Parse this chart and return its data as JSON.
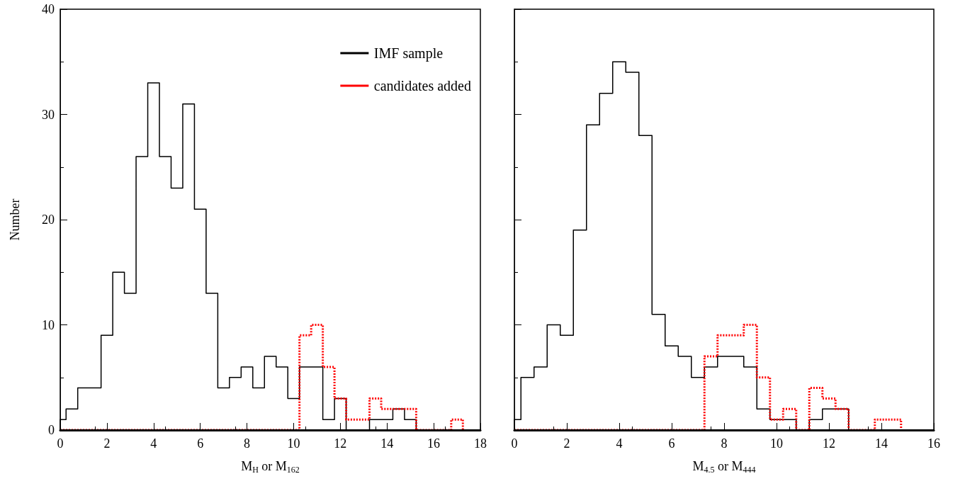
{
  "chart_data": [
    {
      "type": "histogram",
      "xlabel": "M$_{H}$ or M$_{162}$",
      "ylabel": "Number",
      "xlim": [
        0,
        18
      ],
      "xticks": [
        0,
        2,
        4,
        6,
        8,
        10,
        12,
        14,
        16,
        18
      ],
      "ylim": [
        0,
        40
      ],
      "yticks": [
        0,
        10,
        20,
        30,
        40
      ],
      "grid": false,
      "legend": "top right",
      "bins": [
        0,
        0.25,
        0.75,
        1.25,
        1.75,
        2.25,
        2.75,
        3.25,
        3.75,
        4.25,
        4.75,
        5.25,
        5.75,
        6.25,
        6.75,
        7.25,
        7.75,
        8.25,
        8.75,
        9.25,
        9.75,
        10.25,
        10.75,
        11.25,
        11.75,
        12.25,
        12.75,
        13.25,
        13.75,
        14.25,
        14.75,
        15.25,
        15.75,
        16.25,
        16.75,
        17.25
      ],
      "series": [
        {
          "name": "IMF sample",
          "color": "#000000",
          "line_style": "solid",
          "values": [
            1,
            2,
            4,
            4,
            9,
            15,
            13,
            26,
            33,
            26,
            23,
            31,
            21,
            13,
            4,
            5,
            6,
            4,
            7,
            6,
            3,
            6,
            6,
            1,
            3,
            0,
            0,
            1,
            1,
            2,
            1,
            0,
            0,
            0,
            0
          ]
        },
        {
          "name": "candidates added",
          "color": "#ff0000",
          "line_style": "dotted",
          "values": [
            0,
            0,
            0,
            0,
            0,
            0,
            0,
            0,
            0,
            0,
            0,
            0,
            0,
            0,
            0,
            0,
            0,
            0,
            0,
            0,
            0,
            9,
            10,
            6,
            3,
            1,
            1,
            3,
            2,
            2,
            2,
            0,
            0,
            0,
            1
          ]
        }
      ]
    },
    {
      "type": "histogram",
      "xlabel": "M$_{4.5}$ or M$_{444}$",
      "xlim": [
        0,
        16
      ],
      "xticks": [
        0,
        2,
        4,
        6,
        8,
        10,
        12,
        14,
        16
      ],
      "ylim": [
        0,
        40
      ],
      "yticks": [
        0,
        10,
        20,
        30,
        40
      ],
      "grid": false,
      "legend": false,
      "tick_labels": "x",
      "bins": [
        0,
        0.25,
        0.75,
        1.25,
        1.75,
        2.25,
        2.75,
        3.25,
        3.75,
        4.25,
        4.75,
        5.25,
        5.75,
        6.25,
        6.75,
        7.25,
        7.75,
        8.25,
        8.75,
        9.25,
        9.75,
        10.25,
        10.75,
        11.25,
        11.75,
        12.25,
        12.75,
        13.25,
        13.75,
        14.25,
        14.75
      ],
      "series": [
        {
          "color": "#000000",
          "line_style": "solid",
          "values": [
            1,
            5,
            6,
            10,
            9,
            19,
            29,
            32,
            35,
            34,
            28,
            11,
            8,
            7,
            5,
            6,
            7,
            7,
            6,
            2,
            1,
            1,
            0,
            1,
            2,
            2,
            0,
            0,
            0,
            0
          ]
        },
        {
          "color": "#ff0000",
          "line_style": "dotted",
          "values": [
            0,
            0,
            0,
            0,
            0,
            0,
            0,
            0,
            0,
            0,
            0,
            0,
            0,
            0,
            0,
            7,
            9,
            9,
            10,
            5,
            1,
            2,
            0,
            4,
            3,
            2,
            0,
            0,
            1,
            1
          ]
        }
      ]
    }
  ]
}
